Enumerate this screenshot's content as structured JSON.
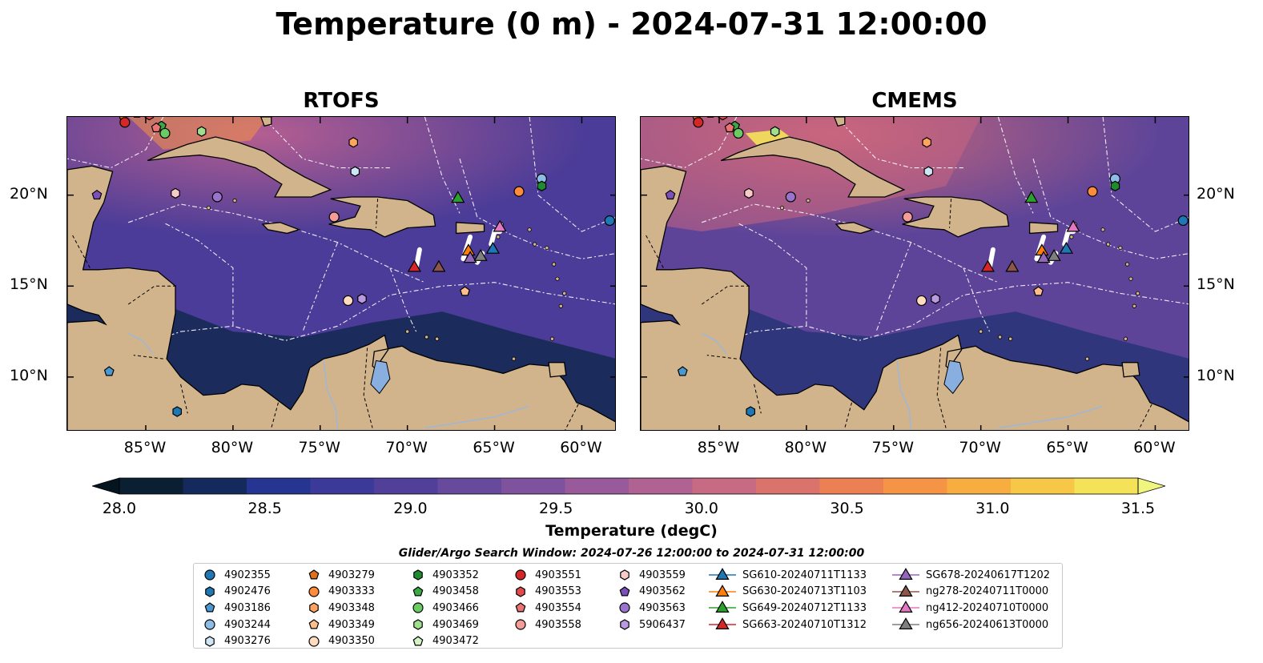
{
  "title": "Temperature (0 m) - 2024-07-31 12:00:00",
  "panels": [
    {
      "id": "rtofs",
      "title": "RTOFS"
    },
    {
      "id": "cmems",
      "title": "CMEMS"
    }
  ],
  "map_extent": {
    "lon": [
      -89.5,
      -58.0
    ],
    "lat": [
      7.0,
      24.3
    ]
  },
  "lon_ticks": [
    "85°W",
    "80°W",
    "75°W",
    "70°W",
    "65°W",
    "60°W"
  ],
  "lat_ticks": [
    "20°N",
    "15°N",
    "10°N"
  ],
  "colorbar": {
    "title": "Temperature (degC)",
    "range": [
      28.0,
      31.5
    ],
    "labels": [
      "28.0",
      "28.5",
      "29.0",
      "29.5",
      "30.0",
      "30.5",
      "31.0",
      "31.5"
    ],
    "colors": [
      "#0b1f33",
      "#152a5c",
      "#263591",
      "#3b3a98",
      "#50409a",
      "#674a9c",
      "#7f529e",
      "#995a9c",
      "#b06293",
      "#c66b83",
      "#db736d",
      "#ec8052",
      "#f69446",
      "#f8ad41",
      "#f7c847",
      "#f4e359"
    ],
    "extend_low": "#051520",
    "extend_high": "#f0f580"
  },
  "search_window": "Glider/Argo Search Window: 2024-07-26 12:00:00 to 2024-07-31 12:00:00",
  "legend": [
    [
      {
        "label": "4902355",
        "color": "#1f77b4",
        "marker": "circle"
      },
      {
        "label": "4902476",
        "color": "#1f77b4",
        "marker": "hexagon"
      },
      {
        "label": "4903186",
        "color": "#4a98d0",
        "marker": "pentagon"
      },
      {
        "label": "4903244",
        "color": "#8dbde6",
        "marker": "circle"
      },
      {
        "label": "4903276",
        "color": "#cfe6f7",
        "marker": "hexagon"
      }
    ],
    [
      {
        "label": "4903279",
        "color": "#e0701a",
        "marker": "pentagon"
      },
      {
        "label": "4903333",
        "color": "#ff8c3a",
        "marker": "circle"
      },
      {
        "label": "4903348",
        "color": "#ffa35f",
        "marker": "hexagon"
      },
      {
        "label": "4903349",
        "color": "#ffbf8b",
        "marker": "pentagon"
      },
      {
        "label": "4903350",
        "color": "#ffdcbe",
        "marker": "circle"
      }
    ],
    [
      {
        "label": "4903352",
        "color": "#1e8c2e",
        "marker": "hexagon"
      },
      {
        "label": "4903458",
        "color": "#3aa845",
        "marker": "pentagon"
      },
      {
        "label": "4903466",
        "color": "#6acb62",
        "marker": "circle"
      },
      {
        "label": "4903469",
        "color": "#9fe08f",
        "marker": "hexagon"
      },
      {
        "label": "4903472",
        "color": "#d3f5c6",
        "marker": "pentagon"
      }
    ],
    [
      {
        "label": "4903551",
        "color": "#d62728",
        "marker": "circle"
      },
      {
        "label": "4903553",
        "color": "#e04b4b",
        "marker": "hexagon"
      },
      {
        "label": "4903554",
        "color": "#ec7373",
        "marker": "pentagon"
      },
      {
        "label": "4903558",
        "color": "#f49d98",
        "marker": "circle"
      }
    ],
    [
      {
        "label": "4903559",
        "color": "#f9cbc8",
        "marker": "hexagon"
      },
      {
        "label": "4903562",
        "color": "#7d4fb8",
        "marker": "pentagon"
      },
      {
        "label": "4903563",
        "color": "#9a73cc",
        "marker": "circle"
      },
      {
        "label": "5906437",
        "color": "#b99ae0",
        "marker": "hexagon"
      }
    ],
    [
      {
        "label": "SG610-20240711T1133",
        "color": "#1f77b4",
        "marker": "triangle"
      },
      {
        "label": "SG630-20240713T1103",
        "color": "#ff7f0e",
        "marker": "triangle"
      },
      {
        "label": "SG649-20240712T1133",
        "color": "#2ca02c",
        "marker": "triangle"
      },
      {
        "label": "SG663-20240710T1312",
        "color": "#d62728",
        "marker": "triangle"
      }
    ],
    [
      {
        "label": "SG678-20240617T1202",
        "color": "#9467bd",
        "marker": "triangle"
      },
      {
        "label": "ng278-20240711T0000",
        "color": "#8c564b",
        "marker": "triangle"
      },
      {
        "label": "ng412-20240710T0000",
        "color": "#e377c2",
        "marker": "triangle"
      },
      {
        "label": "ng656-20240613T0000",
        "color": "#7f7f7f",
        "marker": "triangle"
      }
    ]
  ],
  "observations": [
    {
      "id": "4902355",
      "lon": -58.4,
      "lat": 18.6,
      "color": "#1f77b4",
      "marker": "circle"
    },
    {
      "id": "4902476",
      "lon": -83.2,
      "lat": 8.1,
      "color": "#1f77b4",
      "marker": "hexagon"
    },
    {
      "id": "4903186",
      "lon": -87.1,
      "lat": 10.3,
      "color": "#4a98d0",
      "marker": "pentagon"
    },
    {
      "id": "4903244",
      "lon": -62.3,
      "lat": 20.9,
      "color": "#8dbde6",
      "marker": "circle"
    },
    {
      "id": "4903276",
      "lon": -73.0,
      "lat": 21.3,
      "color": "#cfe6f7",
      "marker": "hexagon"
    },
    {
      "id": "4903279",
      "lon": -86.3,
      "lat": 24.4,
      "color": "#e0701a",
      "marker": "pentagon"
    },
    {
      "id": "4903333",
      "lon": -63.6,
      "lat": 20.2,
      "color": "#ff8c3a",
      "marker": "circle"
    },
    {
      "id": "4903348",
      "lon": -73.1,
      "lat": 22.9,
      "color": "#ffa35f",
      "marker": "hexagon"
    },
    {
      "id": "4903349",
      "lon": -66.7,
      "lat": 14.7,
      "color": "#ffbf8b",
      "marker": "pentagon"
    },
    {
      "id": "4903350",
      "lon": -73.4,
      "lat": 14.2,
      "color": "#ffdcbe",
      "marker": "circle"
    },
    {
      "id": "4903352",
      "lon": -62.3,
      "lat": 20.5,
      "color": "#1e8c2e",
      "marker": "hexagon"
    },
    {
      "id": "4903458",
      "lon": -84.1,
      "lat": 23.8,
      "color": "#3aa845",
      "marker": "pentagon"
    },
    {
      "id": "4903466",
      "lon": -83.9,
      "lat": 23.4,
      "color": "#6acb62",
      "marker": "circle"
    },
    {
      "id": "4903469",
      "lon": -81.8,
      "lat": 23.5,
      "color": "#9fe08f",
      "marker": "hexagon"
    },
    {
      "id": "4903472",
      "lon": -85.5,
      "lat": 24.5,
      "color": "#d3f5c6",
      "marker": "pentagon"
    },
    {
      "id": "4903551",
      "lon": -86.2,
      "lat": 24.0,
      "color": "#d62728",
      "marker": "circle"
    },
    {
      "id": "4903553",
      "lon": -84.8,
      "lat": 24.4,
      "color": "#e04b4b",
      "marker": "hexagon"
    },
    {
      "id": "4903554",
      "lon": -84.4,
      "lat": 23.7,
      "color": "#ec7373",
      "marker": "pentagon"
    },
    {
      "id": "4903558",
      "lon": -74.2,
      "lat": 18.8,
      "color": "#f49d98",
      "marker": "circle"
    },
    {
      "id": "4903559",
      "lon": -83.3,
      "lat": 20.1,
      "color": "#f9cbc8",
      "marker": "hexagon"
    },
    {
      "id": "4903562",
      "lon": -87.8,
      "lat": 20.0,
      "color": "#7d4fb8",
      "marker": "pentagon"
    },
    {
      "id": "4903563",
      "lon": -80.9,
      "lat": 19.9,
      "color": "#9a73cc",
      "marker": "circle"
    },
    {
      "id": "5906437",
      "lon": -72.6,
      "lat": 14.3,
      "color": "#b99ae0",
      "marker": "hexagon"
    },
    {
      "id": "SG610-20240711T1133",
      "lon": -65.1,
      "lat": 17.0,
      "color": "#1f77b4",
      "marker": "triangle"
    },
    {
      "id": "SG630-20240713T1103",
      "lon": -66.5,
      "lat": 16.9,
      "color": "#ff7f0e",
      "marker": "triangle"
    },
    {
      "id": "SG649-20240712T1133",
      "lon": -67.1,
      "lat": 19.8,
      "color": "#2ca02c",
      "marker": "triangle"
    },
    {
      "id": "SG663-20240710T1312",
      "lon": -69.6,
      "lat": 16.0,
      "color": "#d62728",
      "marker": "triangle"
    },
    {
      "id": "SG678-20240617T1202",
      "lon": -66.4,
      "lat": 16.5,
      "color": "#9467bd",
      "marker": "triangle"
    },
    {
      "id": "ng278-20240711T0000",
      "lon": -68.2,
      "lat": 16.0,
      "color": "#8c564b",
      "marker": "triangle"
    },
    {
      "id": "ng412-20240710T0000",
      "lon": -64.7,
      "lat": 18.2,
      "color": "#e377c2",
      "marker": "triangle"
    },
    {
      "id": "ng656-20240613T0000",
      "lon": -65.8,
      "lat": 16.6,
      "color": "#7f7f7f",
      "marker": "triangle"
    }
  ]
}
